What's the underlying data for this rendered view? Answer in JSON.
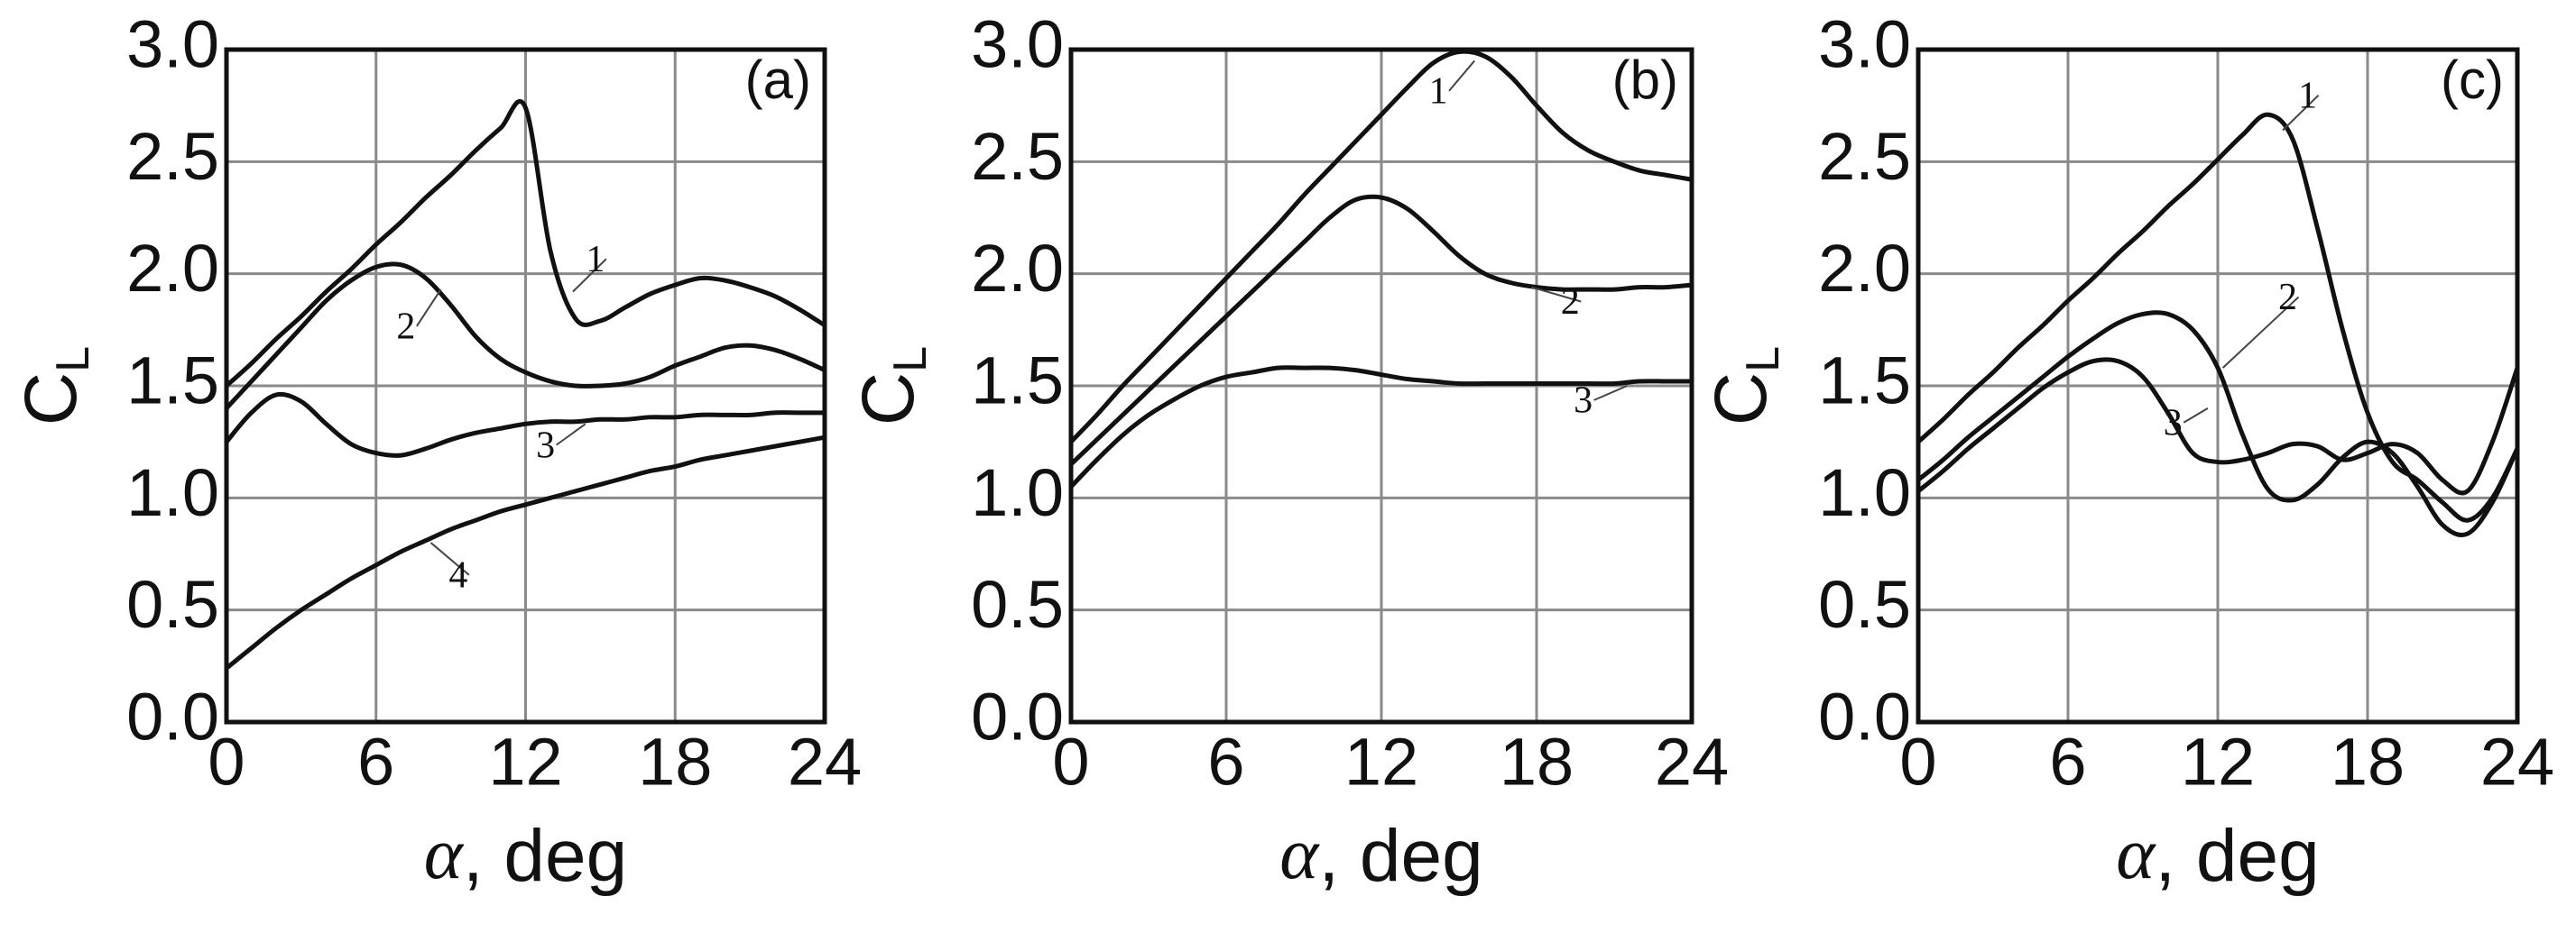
{
  "chart_data": [
    {
      "type": "line",
      "panel": "(a)",
      "ylabel": "C",
      "ylabel_sub": "L",
      "xlabel_symbol": "α",
      "xlabel_unit": ", deg",
      "x": [
        0,
        1,
        2,
        3,
        4,
        5,
        6,
        7,
        8,
        9,
        10,
        11,
        12,
        13,
        14,
        15,
        16,
        17,
        18,
        19,
        20,
        21,
        22,
        23,
        24
      ],
      "xlim": [
        0,
        24
      ],
      "xticks": [
        0,
        6,
        12,
        18,
        24
      ],
      "ylim": [
        0,
        3
      ],
      "yticks": [
        {
          "value": 0,
          "label": "0.0"
        },
        0.5,
        {
          "value": 1,
          "label": "1.0"
        },
        1.5,
        {
          "value": 2,
          "label": "2.0"
        },
        2.5,
        {
          "value": 3,
          "label": "3.0"
        }
      ],
      "grid": true,
      "series": [
        {
          "name": "1",
          "color": "#111111",
          "values": [
            1.5,
            1.6,
            1.71,
            1.81,
            1.92,
            2.02,
            2.13,
            2.23,
            2.34,
            2.44,
            2.55,
            2.65,
            2.74,
            2.1,
            1.8,
            1.79,
            1.85,
            1.91,
            1.95,
            1.98,
            1.97,
            1.94,
            1.9,
            1.84,
            1.77
          ]
        },
        {
          "name": "2",
          "color": "#111111",
          "values": [
            1.4,
            1.52,
            1.64,
            1.76,
            1.88,
            1.97,
            2.03,
            2.04,
            1.98,
            1.86,
            1.72,
            1.62,
            1.56,
            1.52,
            1.5,
            1.5,
            1.51,
            1.54,
            1.59,
            1.63,
            1.67,
            1.68,
            1.66,
            1.62,
            1.57
          ]
        },
        {
          "name": "3",
          "color": "#111111",
          "values": [
            1.25,
            1.38,
            1.46,
            1.43,
            1.33,
            1.24,
            1.2,
            1.19,
            1.22,
            1.26,
            1.29,
            1.31,
            1.33,
            1.34,
            1.34,
            1.35,
            1.35,
            1.36,
            1.36,
            1.37,
            1.37,
            1.37,
            1.38,
            1.38,
            1.38
          ]
        },
        {
          "name": "4",
          "color": "#111111",
          "values": [
            0.24,
            0.33,
            0.42,
            0.5,
            0.57,
            0.64,
            0.7,
            0.76,
            0.81,
            0.86,
            0.9,
            0.94,
            0.97,
            1.0,
            1.03,
            1.06,
            1.09,
            1.12,
            1.14,
            1.17,
            1.19,
            1.21,
            1.23,
            1.25,
            1.27
          ]
        }
      ]
    },
    {
      "type": "line",
      "panel": "(b)",
      "ylabel": "C",
      "ylabel_sub": "L",
      "xlabel_symbol": "α",
      "xlabel_unit": ", deg",
      "x": [
        0,
        1,
        2,
        3,
        4,
        5,
        6,
        7,
        8,
        9,
        10,
        11,
        12,
        13,
        14,
        15,
        16,
        17,
        18,
        19,
        20,
        21,
        22,
        23,
        24
      ],
      "xlim": [
        0,
        24
      ],
      "xticks": [
        0,
        6,
        12,
        18,
        24
      ],
      "ylim": [
        0,
        3
      ],
      "yticks": [
        {
          "value": 0,
          "label": "0.0"
        },
        0.5,
        {
          "value": 1,
          "label": "1.0"
        },
        1.5,
        {
          "value": 2,
          "label": "2.0"
        },
        2.5,
        {
          "value": 3,
          "label": "3.0"
        }
      ],
      "grid": true,
      "series": [
        {
          "name": "1",
          "color": "#111111",
          "values": [
            1.25,
            1.37,
            1.5,
            1.62,
            1.74,
            1.86,
            1.98,
            2.1,
            2.22,
            2.35,
            2.47,
            2.59,
            2.71,
            2.83,
            2.94,
            2.99,
            2.97,
            2.88,
            2.75,
            2.63,
            2.55,
            2.5,
            2.46,
            2.44,
            2.42
          ]
        },
        {
          "name": "2",
          "color": "#111111",
          "values": [
            1.15,
            1.26,
            1.37,
            1.48,
            1.59,
            1.7,
            1.81,
            1.92,
            2.03,
            2.14,
            2.25,
            2.33,
            2.34,
            2.29,
            2.19,
            2.08,
            2.0,
            1.96,
            1.94,
            1.93,
            1.93,
            1.93,
            1.94,
            1.94,
            1.95
          ]
        },
        {
          "name": "3",
          "color": "#111111",
          "values": [
            1.05,
            1.17,
            1.28,
            1.37,
            1.44,
            1.5,
            1.54,
            1.56,
            1.58,
            1.58,
            1.58,
            1.57,
            1.55,
            1.53,
            1.52,
            1.51,
            1.51,
            1.51,
            1.51,
            1.51,
            1.51,
            1.51,
            1.52,
            1.52,
            1.52
          ]
        }
      ]
    },
    {
      "type": "line",
      "panel": "(c)",
      "ylabel": "C",
      "ylabel_sub": "L",
      "xlabel_symbol": "α",
      "xlabel_unit": ", deg",
      "x": [
        0,
        1,
        2,
        3,
        4,
        5,
        6,
        7,
        8,
        9,
        10,
        11,
        12,
        13,
        14,
        15,
        16,
        17,
        18,
        19,
        20,
        21,
        22,
        23,
        24
      ],
      "xlim": [
        0,
        24
      ],
      "xticks": [
        0,
        6,
        12,
        18,
        24
      ],
      "ylim": [
        0,
        3
      ],
      "yticks": [
        {
          "value": 0,
          "label": "0.0"
        },
        0.5,
        {
          "value": 1,
          "label": "1.0"
        },
        1.5,
        {
          "value": 2,
          "label": "2.0"
        },
        2.5,
        {
          "value": 3,
          "label": "3.0"
        }
      ],
      "grid": true,
      "series": [
        {
          "name": "1",
          "color": "#111111",
          "values": [
            1.25,
            1.35,
            1.46,
            1.56,
            1.67,
            1.77,
            1.88,
            1.98,
            2.09,
            2.19,
            2.3,
            2.4,
            2.51,
            2.62,
            2.71,
            2.6,
            2.2,
            1.75,
            1.38,
            1.16,
            1.08,
            0.98,
            0.9,
            1.0,
            1.22
          ]
        },
        {
          "name": "2",
          "color": "#111111",
          "values": [
            1.08,
            1.17,
            1.27,
            1.36,
            1.45,
            1.54,
            1.63,
            1.71,
            1.78,
            1.82,
            1.82,
            1.75,
            1.58,
            1.28,
            1.04,
            0.99,
            1.06,
            1.18,
            1.25,
            1.2,
            1.05,
            0.88,
            0.84,
            0.98,
            1.22
          ]
        },
        {
          "name": "3",
          "color": "#111111",
          "values": [
            1.03,
            1.12,
            1.22,
            1.31,
            1.4,
            1.49,
            1.56,
            1.61,
            1.61,
            1.54,
            1.38,
            1.2,
            1.16,
            1.17,
            1.2,
            1.24,
            1.23,
            1.17,
            1.2,
            1.24,
            1.2,
            1.08,
            1.03,
            1.25,
            1.58
          ]
        }
      ]
    }
  ]
}
